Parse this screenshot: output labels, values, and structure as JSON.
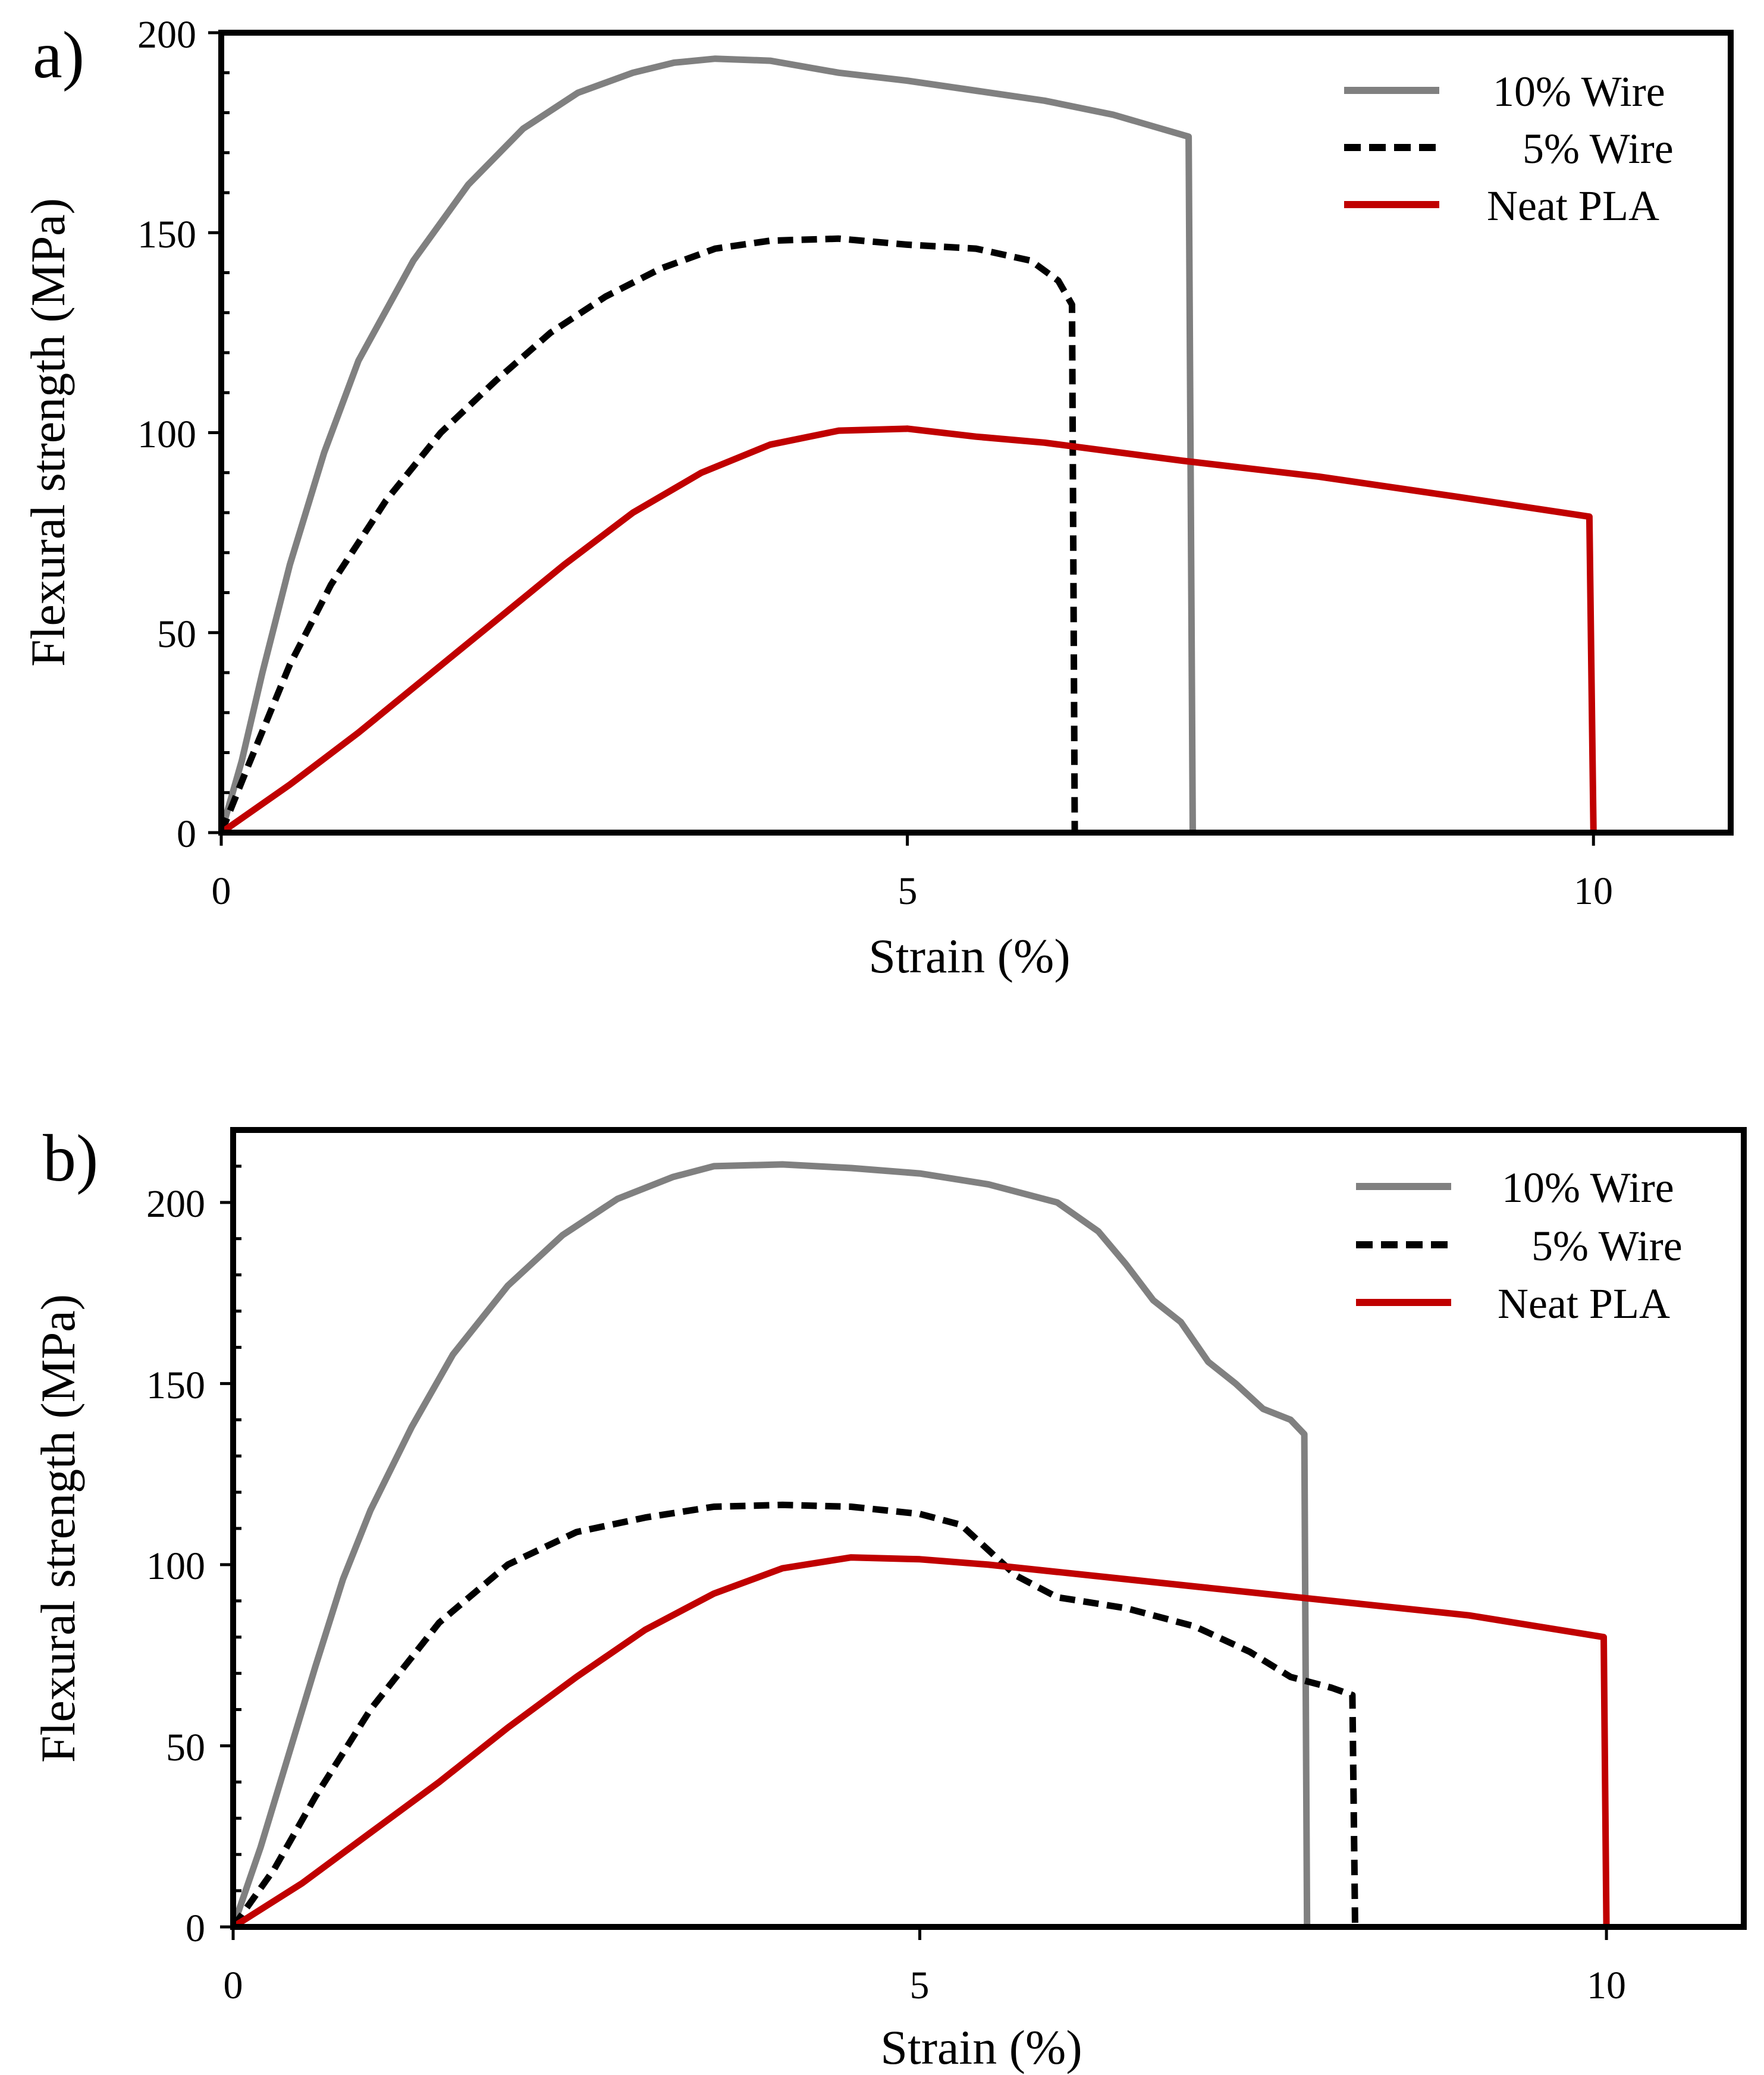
{
  "chart_data": [
    {
      "panel_label": "a)",
      "type": "line",
      "xlabel": "Strain (%)",
      "ylabel": "Flexural strength (MPa)",
      "xlim": [
        0,
        11
      ],
      "ylim": [
        0,
        200
      ],
      "xticks": [
        0,
        5,
        10
      ],
      "xtick_labels": [
        "0",
        "5",
        "10"
      ],
      "yticks": [
        0,
        50,
        100,
        150,
        200
      ],
      "ytick_labels": [
        "0",
        "50",
        "100",
        "150",
        "200"
      ],
      "grid": false,
      "legend_position": "top-right",
      "series": [
        {
          "name": "10% Wire",
          "color": "#808080",
          "style": "solid",
          "points": [
            [
              0,
              0
            ],
            [
              0.15,
              18
            ],
            [
              0.3,
              40
            ],
            [
              0.5,
              67
            ],
            [
              0.75,
              95
            ],
            [
              1,
              118
            ],
            [
              1.4,
              143
            ],
            [
              1.8,
              162
            ],
            [
              2.2,
              176
            ],
            [
              2.6,
              185
            ],
            [
              3,
              190
            ],
            [
              3.3,
              192.5
            ],
            [
              3.6,
              193.5
            ],
            [
              4.0,
              193
            ],
            [
              4.5,
              190
            ],
            [
              5,
              188
            ],
            [
              5.5,
              185.5
            ],
            [
              6,
              183
            ],
            [
              6.5,
              179.5
            ],
            [
              7.05,
              174
            ],
            [
              7.08,
              0
            ]
          ]
        },
        {
          "name": "5% Wire",
          "color": "#000000",
          "style": "dashed",
          "points": [
            [
              0,
              0
            ],
            [
              0.2,
              17
            ],
            [
              0.5,
              42
            ],
            [
              0.8,
              62
            ],
            [
              1.2,
              83
            ],
            [
              1.6,
              100
            ],
            [
              2.0,
              113
            ],
            [
              2.4,
              125
            ],
            [
              2.8,
              134
            ],
            [
              3.2,
              141
            ],
            [
              3.6,
              146
            ],
            [
              4.0,
              148
            ],
            [
              4.5,
              148.5
            ],
            [
              5,
              147
            ],
            [
              5.5,
              146
            ],
            [
              5.9,
              143
            ],
            [
              6.1,
              138
            ],
            [
              6.2,
              132
            ],
            [
              6.22,
              0
            ]
          ]
        },
        {
          "name": "Neat PLA",
          "color": "#c00000",
          "style": "solid",
          "points": [
            [
              0,
              0
            ],
            [
              0.5,
              12
            ],
            [
              1,
              25
            ],
            [
              1.5,
              39
            ],
            [
              2,
              53
            ],
            [
              2.5,
              67
            ],
            [
              3,
              80
            ],
            [
              3.5,
              90
            ],
            [
              4,
              97
            ],
            [
              4.5,
              100.5
            ],
            [
              5,
              101
            ],
            [
              5.5,
              99
            ],
            [
              6,
              97.5
            ],
            [
              7,
              93
            ],
            [
              8,
              89
            ],
            [
              9,
              84
            ],
            [
              9.97,
              79
            ],
            [
              10,
              0
            ]
          ]
        }
      ]
    },
    {
      "panel_label": "b)",
      "type": "line",
      "xlabel": "Strain (%)",
      "ylabel": "Flexural strength (MPa)",
      "xlim": [
        0,
        11
      ],
      "ylim": [
        0,
        220
      ],
      "xticks": [
        0,
        5,
        10
      ],
      "xtick_labels": [
        "0",
        "5",
        "10"
      ],
      "yticks": [
        0,
        50,
        100,
        150,
        200
      ],
      "ytick_labels": [
        "0",
        "50",
        "100",
        "150",
        "200"
      ],
      "grid": false,
      "legend_position": "top-right",
      "series": [
        {
          "name": "10% Wire",
          "color": "#808080",
          "style": "solid",
          "points": [
            [
              0,
              0
            ],
            [
              0.2,
              22
            ],
            [
              0.4,
              47
            ],
            [
              0.6,
              72
            ],
            [
              0.8,
              96
            ],
            [
              1,
              115
            ],
            [
              1.3,
              138
            ],
            [
              1.6,
              158
            ],
            [
              2,
              177
            ],
            [
              2.4,
              191
            ],
            [
              2.8,
              201
            ],
            [
              3.2,
              207
            ],
            [
              3.5,
              210
            ],
            [
              4,
              210.5
            ],
            [
              4.5,
              209.5
            ],
            [
              5,
              208
            ],
            [
              5.5,
              205
            ],
            [
              6,
              200
            ],
            [
              6.3,
              192
            ],
            [
              6.5,
              183
            ],
            [
              6.7,
              173
            ],
            [
              6.9,
              167
            ],
            [
              7.1,
              156
            ],
            [
              7.3,
              150
            ],
            [
              7.5,
              143
            ],
            [
              7.7,
              140
            ],
            [
              7.8,
              136
            ],
            [
              7.82,
              0
            ]
          ]
        },
        {
          "name": "5% Wire",
          "color": "#000000",
          "style": "dashed",
          "points": [
            [
              0,
              0
            ],
            [
              0.3,
              16
            ],
            [
              0.6,
              36
            ],
            [
              1,
              60
            ],
            [
              1.5,
              84
            ],
            [
              2,
              100
            ],
            [
              2.5,
              109
            ],
            [
              3,
              113
            ],
            [
              3.5,
              116
            ],
            [
              4,
              116.5
            ],
            [
              4.5,
              116
            ],
            [
              5,
              114
            ],
            [
              5.3,
              111
            ],
            [
              5.5,
              104
            ],
            [
              5.7,
              97
            ],
            [
              6,
              91
            ],
            [
              6.5,
              88
            ],
            [
              7,
              83
            ],
            [
              7.4,
              76
            ],
            [
              7.7,
              69
            ],
            [
              8,
              66
            ],
            [
              8.15,
              64
            ],
            [
              8.17,
              0
            ]
          ]
        },
        {
          "name": "Neat PLA",
          "color": "#c00000",
          "style": "solid",
          "points": [
            [
              0,
              0
            ],
            [
              0.5,
              12
            ],
            [
              1,
              26
            ],
            [
              1.5,
              40
            ],
            [
              2,
              55
            ],
            [
              2.5,
              69
            ],
            [
              3,
              82
            ],
            [
              3.5,
              92
            ],
            [
              4,
              99
            ],
            [
              4.5,
              102
            ],
            [
              5,
              101.5
            ],
            [
              5.5,
              100
            ],
            [
              6,
              98
            ],
            [
              7,
              94
            ],
            [
              8,
              90
            ],
            [
              9,
              86
            ],
            [
              9.98,
              80
            ],
            [
              10,
              0
            ]
          ]
        }
      ]
    }
  ]
}
